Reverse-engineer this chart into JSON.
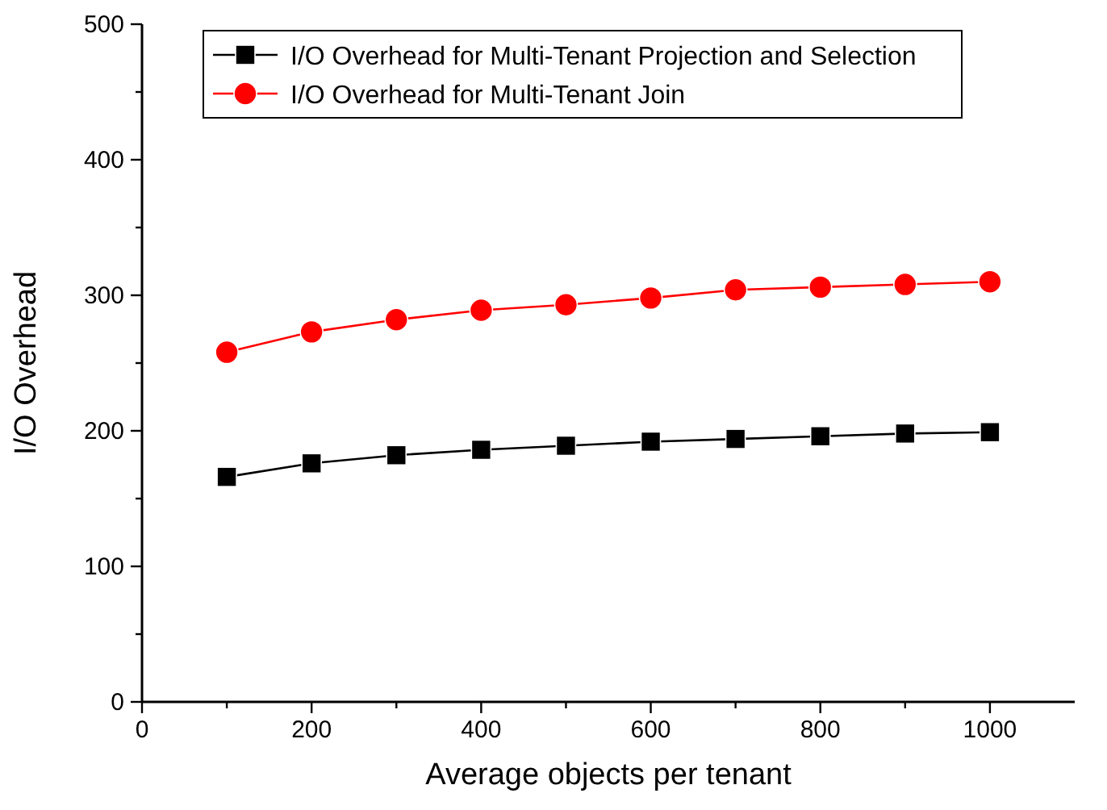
{
  "chart_data": {
    "type": "line",
    "xlabel": "Average objects per tenant",
    "ylabel": "I/O Overhead",
    "x": [
      100,
      200,
      300,
      400,
      500,
      600,
      700,
      800,
      900,
      1000
    ],
    "series": [
      {
        "name": "I/O Overhead for Multi-Tenant Projection and Selection",
        "color": "#000000",
        "marker": "square",
        "values": [
          166,
          176,
          182,
          186,
          189,
          192,
          194,
          196,
          198,
          199
        ]
      },
      {
        "name": "I/O Overhead for Multi-Tenant Join",
        "color": "#ff0000",
        "marker": "circle",
        "values": [
          258,
          273,
          282,
          289,
          293,
          298,
          304,
          306,
          308,
          310
        ]
      }
    ],
    "xlim": [
      0,
      1100
    ],
    "xticks": [
      0,
      {
        "value": 100,
        "label": null
      },
      200,
      {
        "value": 300,
        "label": null
      },
      400,
      {
        "value": 500,
        "label": null
      },
      600,
      {
        "value": 700,
        "label": null
      },
      800,
      {
        "value": 900,
        "label": null
      },
      1000
    ],
    "ylim": [
      0,
      500
    ],
    "yticks": [
      0,
      {
        "value": 50,
        "label": null
      },
      100,
      {
        "value": 150,
        "label": null
      },
      200,
      {
        "value": 250,
        "label": null
      },
      300,
      {
        "value": 350,
        "label": null
      },
      400,
      {
        "value": 450,
        "label": null
      },
      500
    ],
    "grid": false,
    "legend": "top right",
    "line_style": "solid"
  }
}
